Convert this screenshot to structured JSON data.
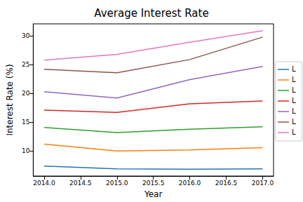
{
  "chart_data": {
    "type": "line",
    "title": "Average Interest Rate",
    "x_label": "Year",
    "y_label": "Interest Rate (%)",
    "x": [
      2014,
      2015,
      2016,
      2017
    ],
    "series": [
      {
        "name": "L",
        "color": "#1f77b4",
        "values": [
          7.4,
          6.9,
          6.85,
          6.9
        ]
      },
      {
        "name": "L",
        "color": "#ff7f0e",
        "values": [
          11.2,
          10.0,
          10.2,
          10.6
        ]
      },
      {
        "name": "L",
        "color": "#2ca02c",
        "values": [
          14.1,
          13.2,
          13.8,
          14.2
        ]
      },
      {
        "name": "L",
        "color": "#d62728",
        "values": [
          17.1,
          16.7,
          18.2,
          18.7
        ]
      },
      {
        "name": "L",
        "color": "#9467bd",
        "values": [
          20.3,
          19.2,
          22.4,
          24.7
        ]
      },
      {
        "name": "L",
        "color": "#8c564b",
        "values": [
          24.2,
          23.6,
          25.9,
          29.8
        ]
      },
      {
        "name": "L",
        "color": "#e377c2",
        "values": [
          25.8,
          26.8,
          28.9,
          30.9
        ]
      }
    ],
    "xlim": [
      2013.85,
      2017.15
    ],
    "xticks": [
      {
        "value": 2014,
        "label": "2014.0"
      },
      {
        "value": 2014.5,
        "label": "2014.5"
      },
      {
        "value": 2015,
        "label": "2015.0"
      },
      {
        "value": 2015.5,
        "label": "2015.5"
      },
      {
        "value": 2016,
        "label": "2016.0"
      },
      {
        "value": 2016.5,
        "label": "2016.5"
      },
      {
        "value": 2017,
        "label": "2017.0"
      }
    ],
    "ylim": [
      5.65,
      32.1
    ],
    "yticks": [
      10,
      15,
      20,
      25,
      30
    ],
    "grid": false,
    "legend": "center right"
  }
}
